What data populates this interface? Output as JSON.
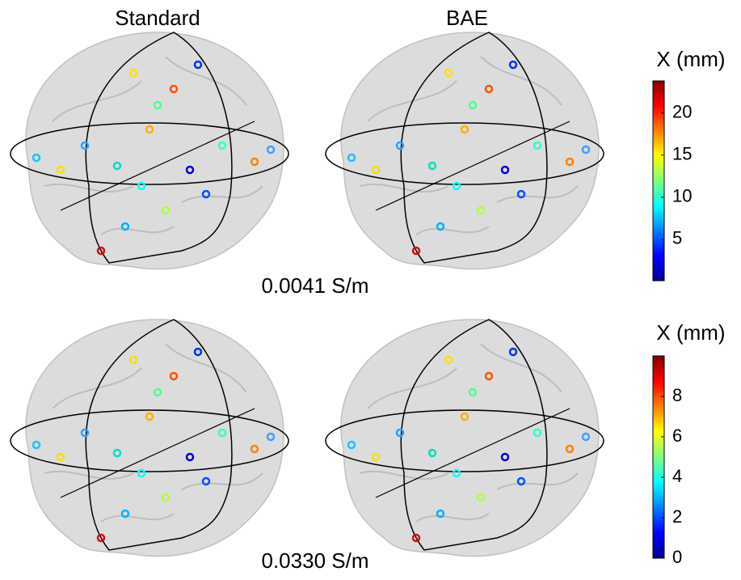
{
  "columns": [
    "Standard",
    "BAE"
  ],
  "rows": [
    {
      "label": "0.0041 S/m",
      "colorbar": {
        "title": "X (mm)",
        "lim": [
          0.1,
          23.8
        ],
        "ticks": [
          5,
          10,
          15,
          20
        ]
      }
    },
    {
      "label": "0.0330 S/m",
      "colorbar": {
        "title": "X (mm)",
        "lim": [
          0,
          10
        ],
        "ticks": [
          0,
          2,
          4,
          6,
          8
        ]
      }
    }
  ]
}
